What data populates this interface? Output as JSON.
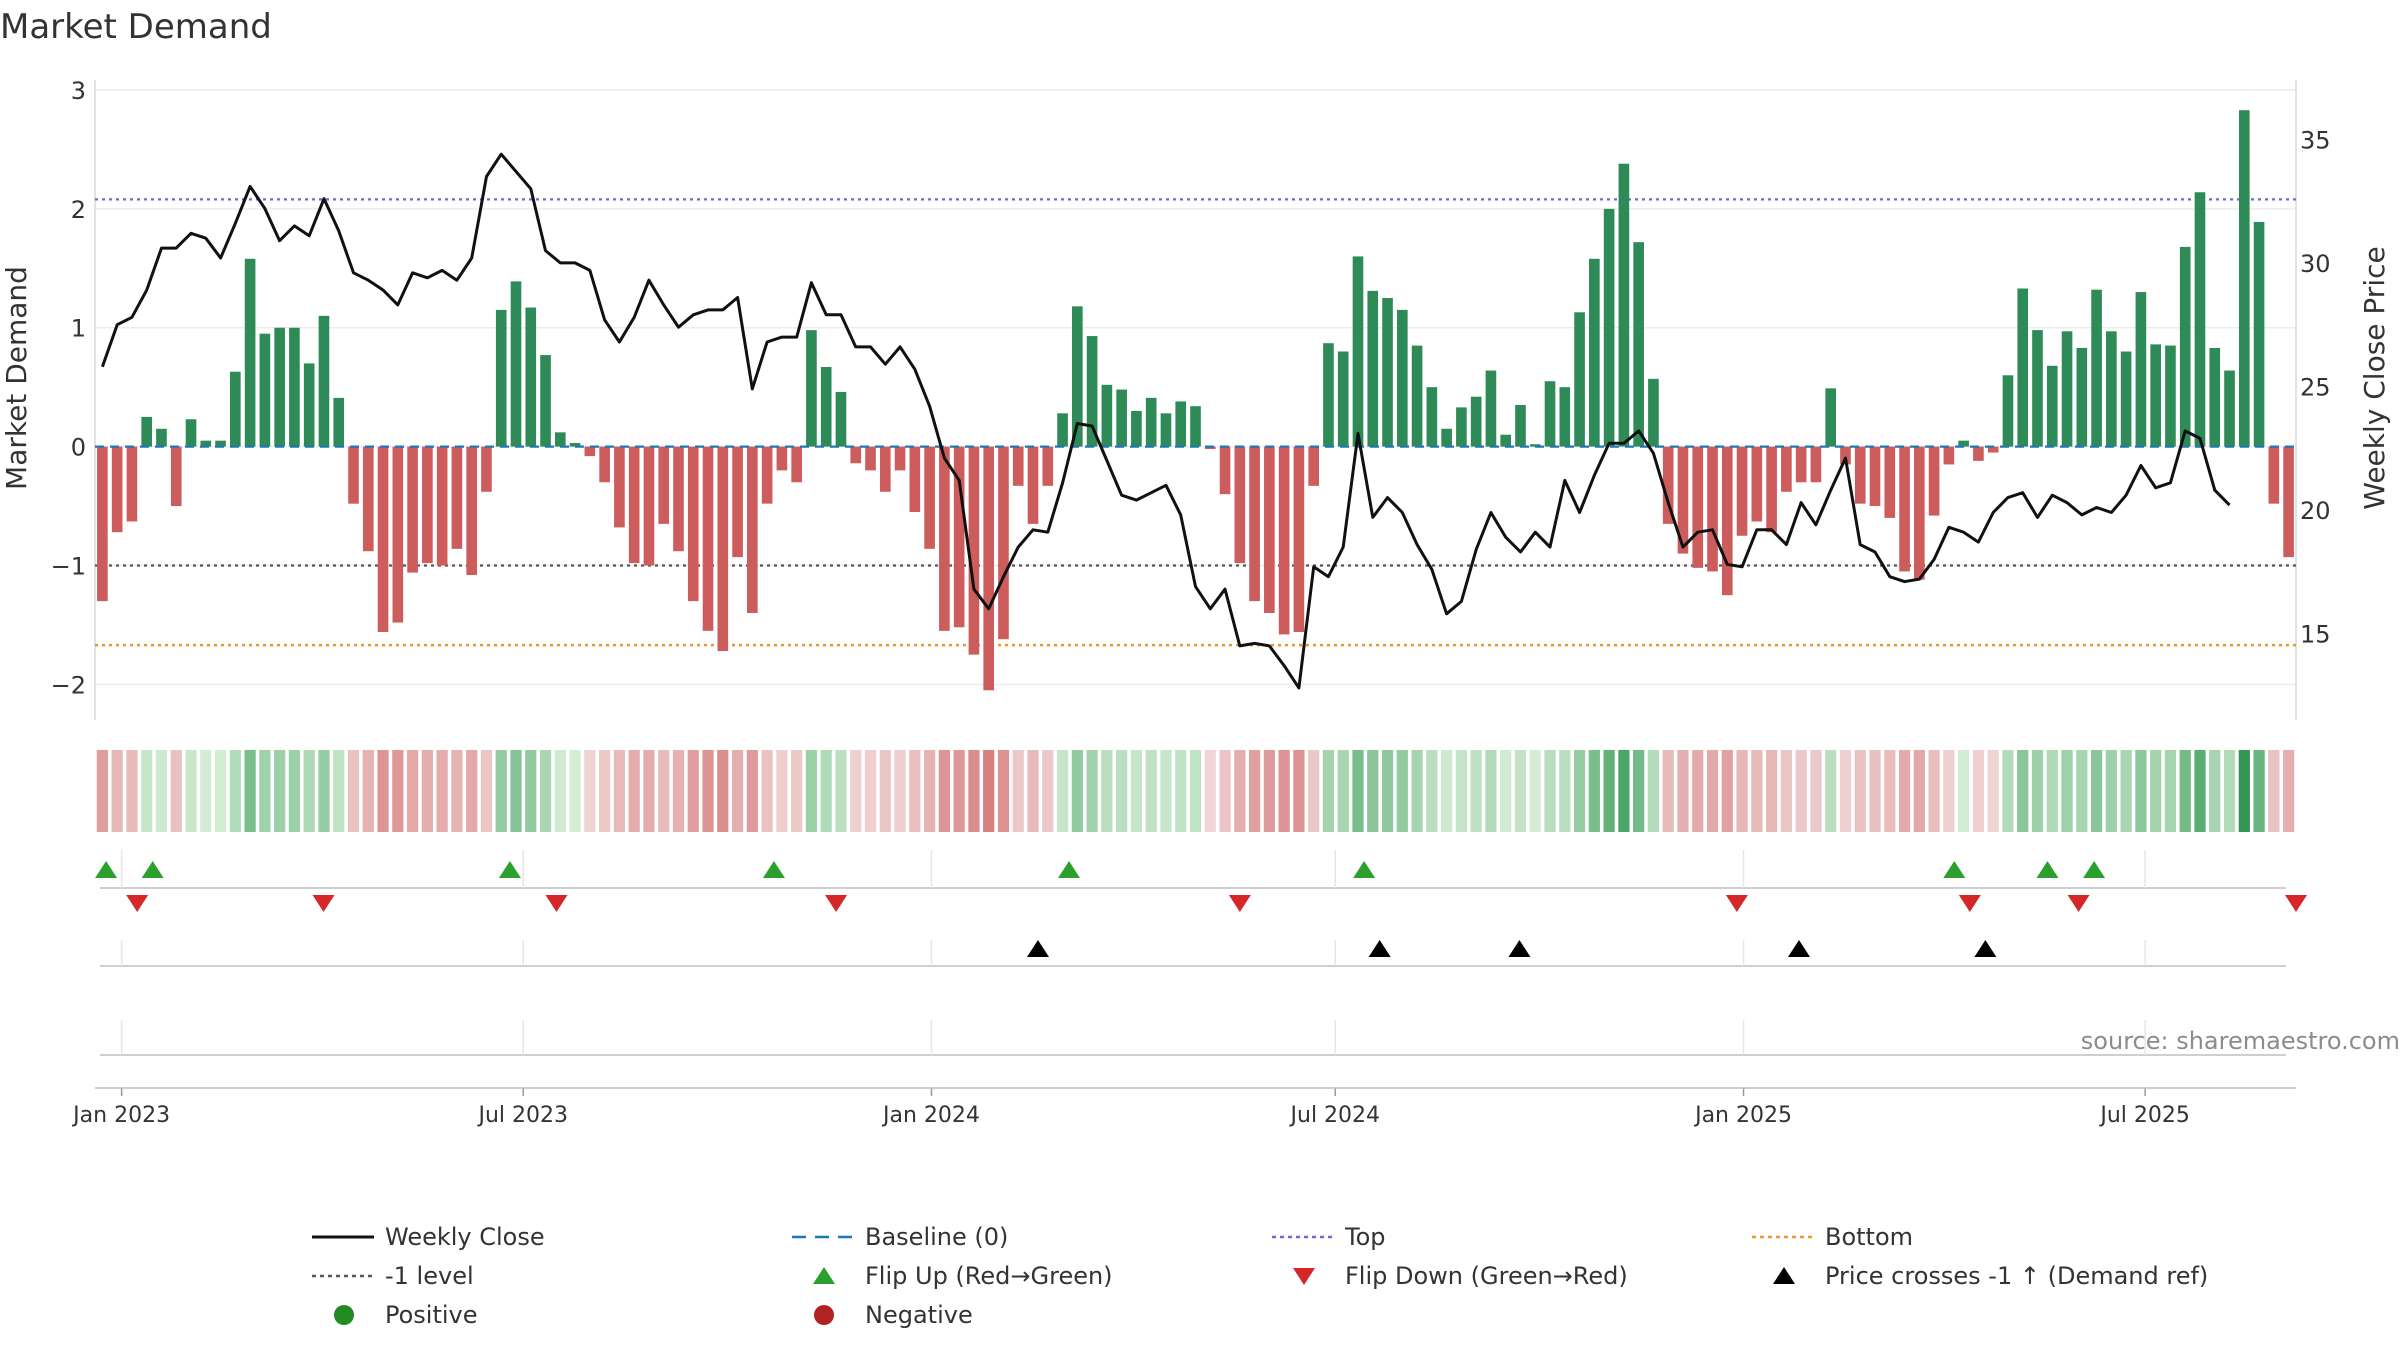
{
  "chart_data": {
    "type": "bar",
    "title": "Market Demand",
    "ylabel": "Market Demand",
    "y2label": "Weekly Close Price",
    "ylim": [
      -2.3,
      3.0
    ],
    "y2lim": [
      11.5,
      37.0
    ],
    "yticks": [
      3,
      2,
      1,
      0,
      -1,
      -2
    ],
    "ytick_labels": [
      "3",
      "2",
      "1",
      "0",
      "−1",
      "−2"
    ],
    "y2ticks": [
      35,
      30,
      25,
      20,
      15
    ],
    "y2tick_labels": [
      "35",
      "30",
      "25",
      "20",
      "15"
    ],
    "x_start": "2022-12-20",
    "x_end": "2025-09-07",
    "xticks": [
      "2023-01-01",
      "2023-07-01",
      "2024-01-01",
      "2024-07-01",
      "2025-01-01",
      "2025-07-01"
    ],
    "xtick_labels": [
      "Jan 2023",
      "Jul 2023",
      "Jan 2024",
      "Jul 2024",
      "Jan 2025",
      "Jul 2025"
    ],
    "demand": [
      -1.3,
      -0.72,
      -0.63,
      0.25,
      0.15,
      -0.5,
      0.23,
      0.05,
      0.05,
      0.63,
      1.58,
      0.95,
      1.0,
      1.0,
      0.7,
      1.1,
      0.41,
      -0.48,
      -0.88,
      -1.56,
      -1.48,
      -1.06,
      -0.98,
      -1.0,
      -0.86,
      -1.08,
      -0.38,
      1.15,
      1.39,
      1.17,
      0.77,
      0.12,
      0.03,
      -0.08,
      -0.3,
      -0.68,
      -0.98,
      -1.0,
      -0.65,
      -0.88,
      -1.3,
      -1.55,
      -1.72,
      -0.93,
      -1.4,
      -0.48,
      -0.2,
      -0.3,
      0.98,
      0.67,
      0.46,
      -0.14,
      -0.2,
      -0.38,
      -0.2,
      -0.55,
      -0.86,
      -1.55,
      -1.52,
      -1.75,
      -2.05,
      -1.62,
      -0.33,
      -0.65,
      -0.33,
      0.28,
      1.18,
      0.93,
      0.52,
      0.48,
      0.3,
      0.41,
      0.28,
      0.38,
      0.34,
      -0.02,
      -0.4,
      -0.98,
      -1.3,
      -1.4,
      -1.58,
      -1.56,
      -0.33,
      0.87,
      0.8,
      1.6,
      1.31,
      1.25,
      1.15,
      0.85,
      0.5,
      0.15,
      0.33,
      0.42,
      0.64,
      0.1,
      0.35,
      0.02,
      0.55,
      0.5,
      1.13,
      1.58,
      2.0,
      2.38,
      1.72,
      0.57,
      -0.65,
      -0.9,
      -1.02,
      -1.05,
      -1.25,
      -0.75,
      -0.63,
      -0.72,
      -0.38,
      -0.3,
      -0.3,
      0.49,
      -0.15,
      -0.48,
      -0.5,
      -0.6,
      -1.05,
      -1.12,
      -0.58,
      -0.15,
      0.05,
      -0.12,
      -0.05,
      0.6,
      1.33,
      0.98,
      0.68,
      0.97,
      0.83,
      1.32,
      0.97,
      0.8,
      1.3,
      0.86,
      0.85,
      1.68,
      2.14,
      0.83,
      0.64,
      2.83,
      1.89,
      -0.48,
      -0.93
    ],
    "price": [
      25.8,
      27.5,
      27.8,
      28.9,
      30.6,
      30.6,
      31.2,
      31.0,
      30.2,
      31.6,
      33.1,
      32.2,
      30.9,
      31.5,
      31.1,
      32.6,
      31.3,
      29.6,
      29.3,
      28.9,
      28.3,
      29.6,
      29.4,
      29.7,
      29.3,
      30.2,
      33.5,
      34.4,
      33.7,
      33.0,
      30.5,
      30.0,
      30.0,
      29.7,
      27.7,
      26.8,
      27.8,
      29.3,
      28.3,
      27.4,
      27.9,
      28.1,
      28.1,
      28.6,
      24.9,
      26.8,
      27.0,
      27.0,
      29.2,
      27.9,
      27.9,
      26.6,
      26.6,
      25.9,
      26.6,
      25.7,
      24.2,
      22.1,
      21.2,
      16.8,
      16.0,
      17.3,
      18.5,
      19.2,
      19.1,
      21.1,
      23.5,
      23.4,
      22.0,
      20.6,
      20.4,
      20.7,
      21.0,
      19.8,
      16.9,
      16.0,
      16.8,
      14.5,
      14.6,
      14.5,
      13.7,
      12.8,
      17.7,
      17.3,
      18.5,
      23.1,
      19.7,
      20.5,
      19.9,
      18.6,
      17.6,
      15.8,
      16.3,
      18.4,
      19.9,
      18.9,
      18.3,
      19.1,
      18.5,
      21.2,
      19.9,
      21.4,
      22.7,
      22.7,
      23.2,
      22.3,
      20.3,
      18.5,
      19.1,
      19.2,
      17.8,
      17.7,
      19.2,
      19.2,
      18.6,
      20.3,
      19.4,
      20.8,
      22.1,
      18.6,
      18.3,
      17.3,
      17.1,
      17.2,
      18.0,
      19.3,
      19.1,
      18.7,
      19.9,
      20.5,
      20.7,
      19.7,
      20.6,
      20.3,
      19.8,
      20.1,
      19.9,
      20.6,
      21.8,
      20.9,
      21.1,
      23.2,
      22.9,
      20.8,
      20.2
    ],
    "flip_up": [
      "2022-12-25",
      "2023-01-15",
      "2023-06-25",
      "2023-10-22",
      "2024-03-03",
      "2024-07-14",
      "2025-04-06",
      "2025-05-18",
      "2025-06-08"
    ],
    "flip_down": [
      "2023-01-08",
      "2023-04-02",
      "2023-07-16",
      "2023-11-19",
      "2024-05-19",
      "2024-12-29",
      "2025-04-13",
      "2025-06-01",
      "2025-09-07"
    ],
    "price_cross": [
      "2024-02-18",
      "2024-07-21",
      "2024-09-22",
      "2025-01-26",
      "2025-04-20"
    ],
    "levels": {
      "top": 2.08,
      "minus_one": -1.0,
      "bottom": -1.67
    },
    "source_note": "source: sharemaestro.com",
    "legend": [
      {
        "label": "Weekly Close",
        "symbol": "line",
        "color": "#111111"
      },
      {
        "label": "Baseline (0)",
        "symbol": "dash",
        "color": "#1f77b4"
      },
      {
        "label": "Top",
        "symbol": "dot",
        "color": "#6b6bd6"
      },
      {
        "label": "Bottom",
        "symbol": "dot",
        "color": "#e89a2a"
      },
      {
        "label": "-1 level",
        "symbol": "dot",
        "color": "#555555"
      },
      {
        "label": "Flip Up (Red→Green)",
        "symbol": "tri-up",
        "color": "#2ca02c"
      },
      {
        "label": "Flip Down (Green→Red)",
        "symbol": "tri-down",
        "color": "#d62728"
      },
      {
        "label": "Price crosses -1 ↑ (Demand ref)",
        "symbol": "tri-up",
        "color": "#000000"
      },
      {
        "label": "Positive",
        "symbol": "circle",
        "color": "#228b22"
      },
      {
        "label": "Negative",
        "symbol": "circle",
        "color": "#b22222"
      }
    ]
  },
  "colors": {
    "positive_bar": "#2e8b57",
    "negative_bar": "#cd5c5c",
    "price_line": "#111111",
    "flip_up": "#2ca02c",
    "flip_down": "#d62728",
    "price_cross": "#000000"
  }
}
